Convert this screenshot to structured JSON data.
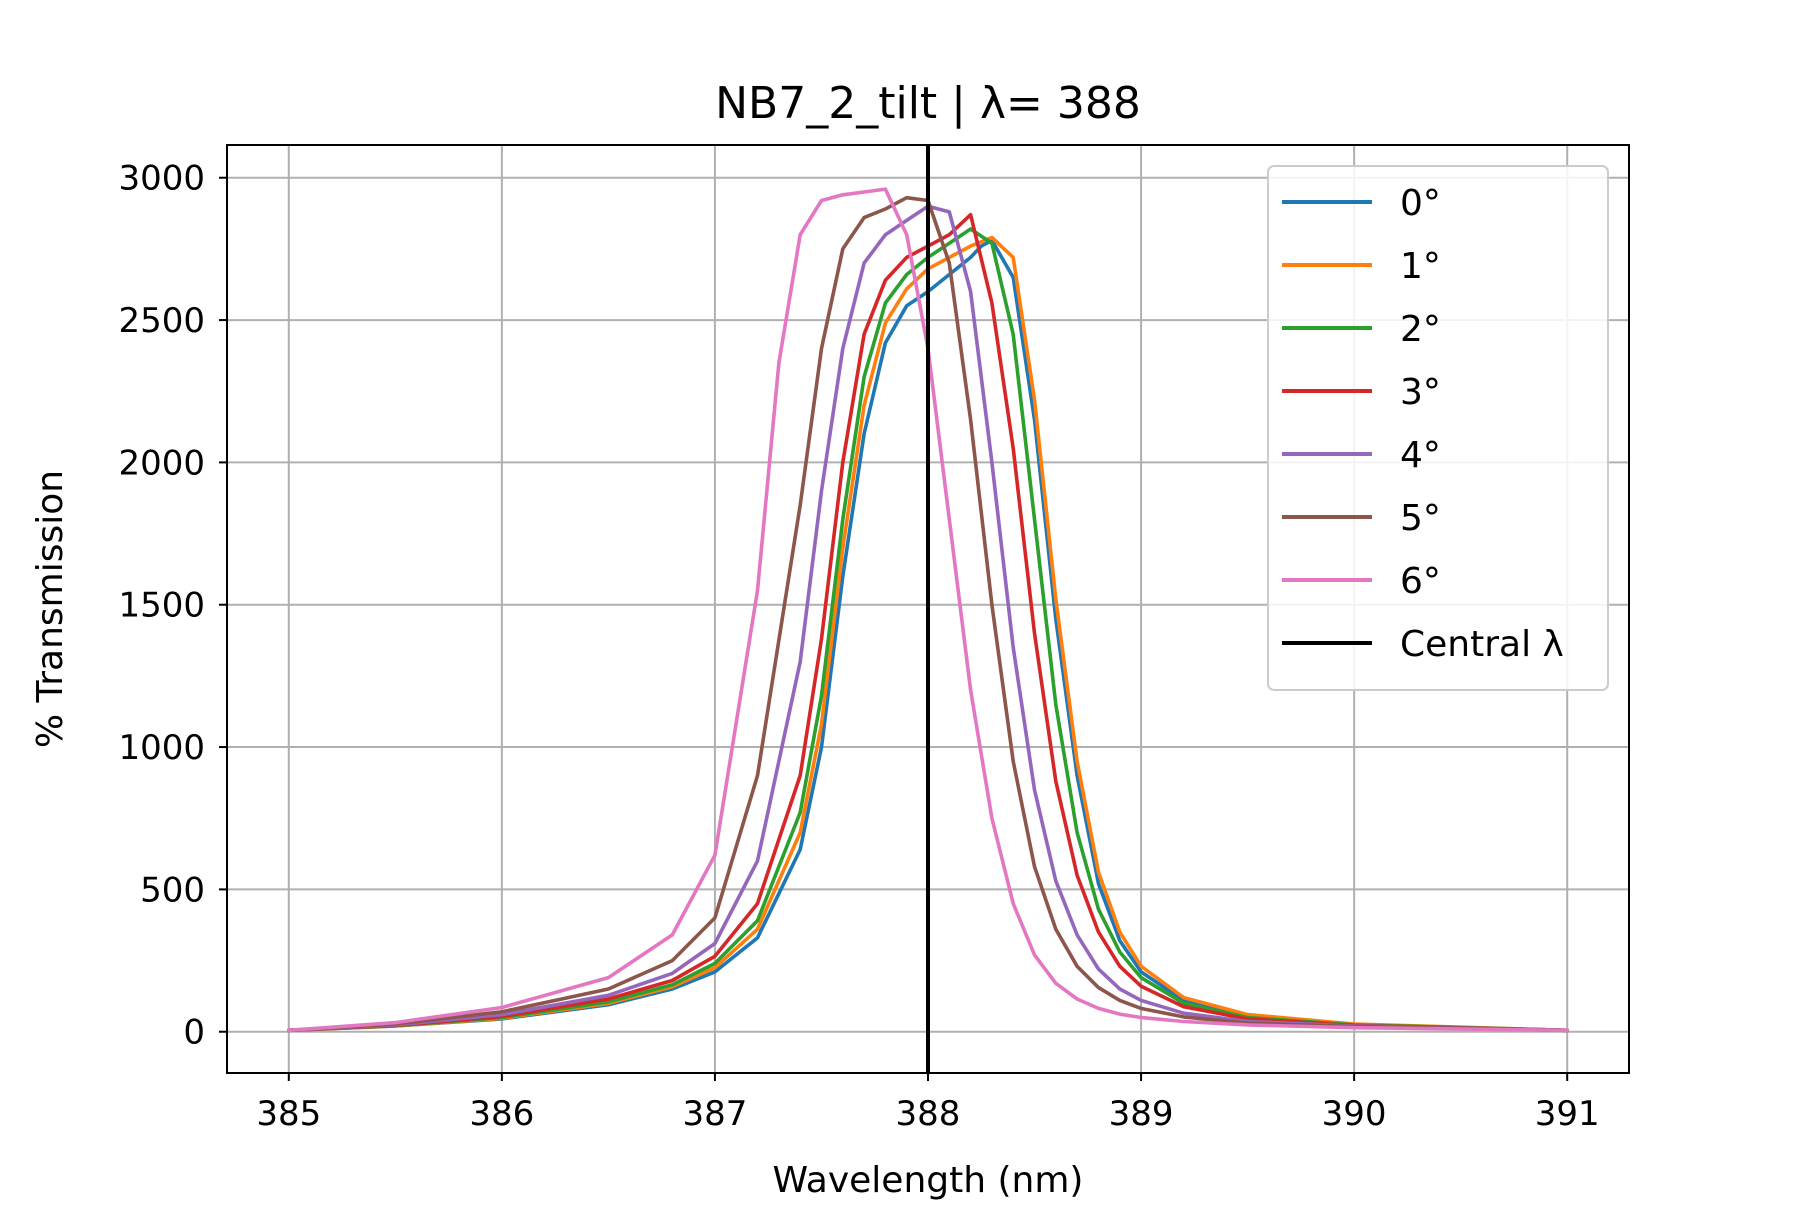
{
  "chart_data": {
    "type": "line",
    "title": "NB7_2_tilt | λ= 388",
    "xlabel": "Wavelength (nm)",
    "ylabel": "% Transmission",
    "xlim": [
      384.71,
      391.29
    ],
    "ylim": [
      -145,
      3115
    ],
    "xticks": [
      385,
      386,
      387,
      388,
      389,
      390,
      391
    ],
    "xtick_labels": [
      "385",
      "386",
      "387",
      "388",
      "389",
      "390",
      "391"
    ],
    "yticks": [
      0,
      500,
      1000,
      1500,
      2000,
      2500,
      3000
    ],
    "ytick_labels": [
      "0",
      "500",
      "1000",
      "1500",
      "2000",
      "2500",
      "3000"
    ],
    "grid": true,
    "legend_position": "top-right",
    "vline": {
      "name": "Central λ",
      "x": 388,
      "color": "#000000"
    },
    "series": [
      {
        "name": "0°",
        "color": "#1f77b4",
        "x": [
          385,
          385.5,
          386,
          386.5,
          386.8,
          387,
          387.2,
          387.4,
          387.5,
          387.6,
          387.7,
          387.8,
          387.9,
          388,
          388.1,
          388.2,
          388.25,
          388.3,
          388.4,
          388.5,
          388.6,
          388.7,
          388.8,
          388.9,
          389,
          389.2,
          389.5,
          390,
          391
        ],
        "y": [
          5,
          20,
          45,
          95,
          150,
          210,
          330,
          640,
          1000,
          1600,
          2100,
          2420,
          2550,
          2600,
          2660,
          2720,
          2760,
          2780,
          2650,
          2150,
          1450,
          900,
          520,
          320,
          210,
          110,
          55,
          25,
          5
        ]
      },
      {
        "name": "1°",
        "color": "#ff7f0e",
        "x": [
          385,
          385.5,
          386,
          386.5,
          386.8,
          387,
          387.2,
          387.4,
          387.5,
          387.6,
          387.7,
          387.8,
          387.9,
          388,
          388.1,
          388.2,
          388.3,
          388.4,
          388.5,
          388.6,
          388.7,
          388.8,
          388.9,
          389,
          389.2,
          389.5,
          390,
          391
        ],
        "y": [
          5,
          20,
          47,
          100,
          158,
          225,
          360,
          700,
          1080,
          1700,
          2200,
          2490,
          2610,
          2680,
          2720,
          2760,
          2790,
          2720,
          2220,
          1520,
          950,
          560,
          350,
          230,
          120,
          60,
          27,
          5
        ]
      },
      {
        "name": "2°",
        "color": "#2ca02c",
        "x": [
          385,
          385.5,
          386,
          386.5,
          386.8,
          387,
          387.2,
          387.4,
          387.5,
          387.6,
          387.7,
          387.8,
          387.9,
          388,
          388.1,
          388.2,
          388.3,
          388.4,
          388.5,
          388.6,
          388.7,
          388.8,
          388.9,
          389,
          389.2,
          389.5,
          390,
          391
        ],
        "y": [
          5,
          21,
          50,
          105,
          165,
          240,
          390,
          770,
          1180,
          1800,
          2300,
          2560,
          2660,
          2720,
          2770,
          2820,
          2770,
          2450,
          1800,
          1150,
          700,
          430,
          280,
          190,
          100,
          50,
          24,
          5
        ]
      },
      {
        "name": "3°",
        "color": "#d62728",
        "x": [
          385,
          385.5,
          386,
          386.5,
          386.8,
          387,
          387.2,
          387.4,
          387.5,
          387.6,
          387.7,
          387.8,
          387.9,
          388,
          388.1,
          388.2,
          388.3,
          388.4,
          388.5,
          388.6,
          388.7,
          388.8,
          388.9,
          389,
          389.2,
          389.5,
          390,
          391
        ],
        "y": [
          5,
          22,
          54,
          115,
          180,
          265,
          450,
          900,
          1380,
          2000,
          2450,
          2640,
          2720,
          2760,
          2800,
          2870,
          2560,
          2050,
          1400,
          880,
          550,
          350,
          230,
          160,
          88,
          45,
          22,
          5
        ]
      },
      {
        "name": "4°",
        "color": "#9467bd",
        "x": [
          385,
          385.5,
          386,
          386.5,
          386.8,
          387,
          387.2,
          387.4,
          387.5,
          387.6,
          387.7,
          387.8,
          387.9,
          388,
          388.1,
          388.2,
          388.3,
          388.4,
          388.5,
          388.6,
          388.7,
          388.8,
          388.9,
          389,
          389.2,
          389.5,
          390,
          391
        ],
        "y": [
          5,
          24,
          60,
          128,
          205,
          310,
          600,
          1300,
          1900,
          2400,
          2700,
          2800,
          2850,
          2900,
          2880,
          2600,
          2000,
          1350,
          850,
          530,
          340,
          220,
          150,
          110,
          65,
          36,
          20,
          5
        ]
      },
      {
        "name": "5°",
        "color": "#8c564b",
        "x": [
          385,
          385.5,
          386,
          386.5,
          386.8,
          387,
          387.2,
          387.4,
          387.5,
          387.6,
          387.7,
          387.8,
          387.9,
          388,
          388.1,
          388.2,
          388.3,
          388.4,
          388.5,
          388.6,
          388.7,
          388.8,
          388.9,
          389,
          389.2,
          389.5,
          390,
          391
        ],
        "y": [
          5,
          27,
          70,
          150,
          250,
          400,
          900,
          1850,
          2400,
          2750,
          2860,
          2890,
          2930,
          2920,
          2700,
          2150,
          1500,
          950,
          580,
          360,
          230,
          155,
          110,
          82,
          52,
          30,
          18,
          5
        ]
      },
      {
        "name": "6°",
        "color": "#e377c2",
        "x": [
          385,
          385.5,
          386,
          386.5,
          386.8,
          387,
          387.2,
          387.3,
          387.4,
          387.5,
          387.6,
          387.7,
          387.8,
          387.9,
          388,
          388.1,
          388.2,
          388.3,
          388.4,
          388.5,
          388.6,
          388.7,
          388.8,
          388.9,
          389,
          389.2,
          389.5,
          390,
          391
        ],
        "y": [
          5,
          32,
          85,
          190,
          340,
          620,
          1550,
          2350,
          2800,
          2920,
          2940,
          2950,
          2960,
          2800,
          2400,
          1800,
          1200,
          750,
          450,
          270,
          170,
          115,
          82,
          62,
          50,
          36,
          24,
          14,
          5
        ]
      }
    ]
  }
}
